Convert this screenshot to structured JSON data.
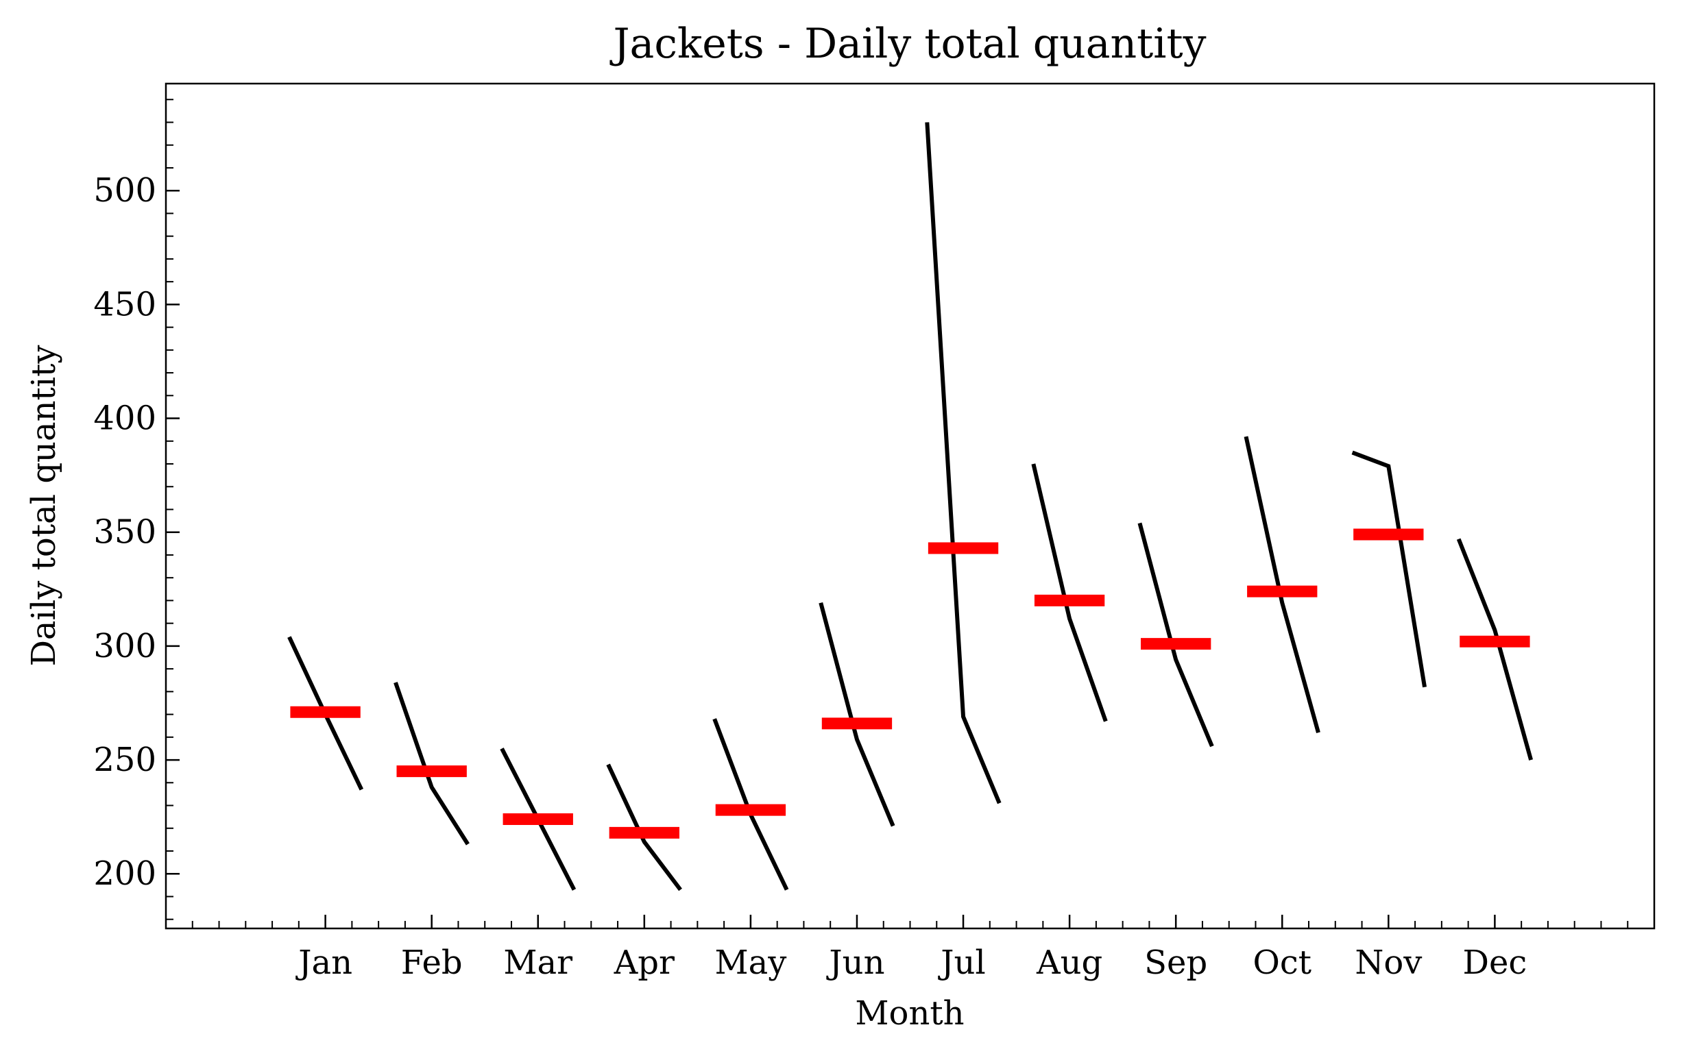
{
  "chart_data": {
    "type": "month_plot",
    "title": "Jackets - Daily total quantity",
    "xlabel": "Month",
    "ylabel": "Daily total quantity",
    "categories": [
      "Jan",
      "Feb",
      "Mar",
      "Apr",
      "May",
      "Jun",
      "Jul",
      "Aug",
      "Sep",
      "Oct",
      "Nov",
      "Dec"
    ],
    "values": [
      [
        304,
        270,
        237
      ],
      [
        284,
        238,
        213
      ],
      [
        255,
        224,
        193
      ],
      [
        248,
        214,
        193
      ],
      [
        268,
        226,
        193
      ],
      [
        319,
        259,
        221
      ],
      [
        530,
        269,
        231
      ],
      [
        380,
        312,
        267
      ],
      [
        354,
        294,
        256
      ],
      [
        392,
        319,
        262
      ],
      [
        385,
        379,
        282
      ],
      [
        347,
        307,
        250
      ]
    ],
    "means": [
      271,
      245,
      224,
      218,
      228,
      266,
      343,
      320,
      301,
      324,
      349,
      302
    ],
    "line_color": "#000000",
    "mean_color": "#ff0000",
    "ylim": [
      176,
      547
    ],
    "yticks": [
      200,
      250,
      300,
      350,
      400,
      450,
      500
    ],
    "yminorticks": [
      180,
      190,
      210,
      220,
      230,
      240,
      260,
      270,
      280,
      290,
      310,
      320,
      330,
      340,
      360,
      370,
      380,
      390,
      410,
      420,
      430,
      440,
      460,
      470,
      480,
      490,
      510,
      520,
      530,
      540
    ]
  }
}
